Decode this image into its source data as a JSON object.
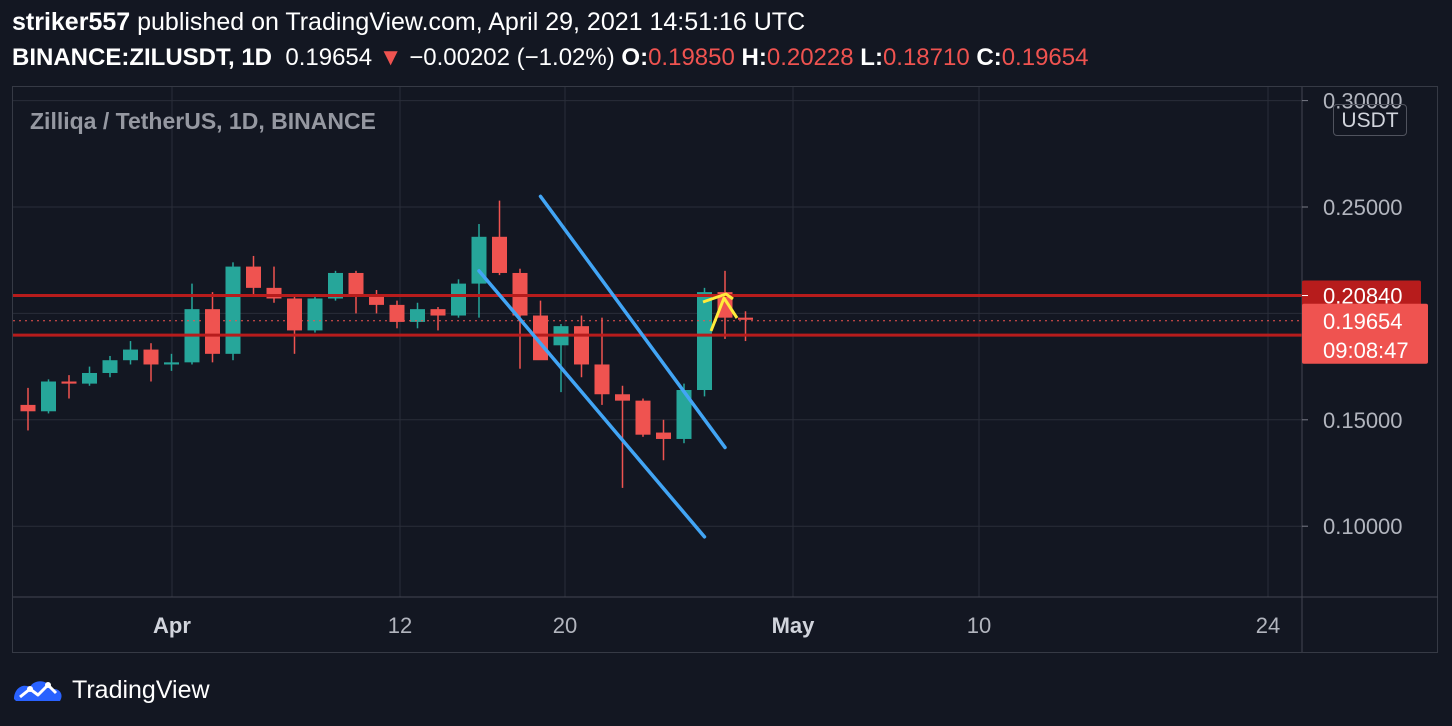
{
  "header": {
    "author": "striker557",
    "published_text": " published on TradingView.com, April 29, 2021 14:51:16 UTC",
    "symbol": "BINANCE:ZILUSDT, 1D",
    "last": "0.19654",
    "change_arrow": "▼",
    "change": "−0.00202 (−1.02%)",
    "o_label": "O:",
    "o_value": "0.19850",
    "h_label": "H:",
    "h_value": "0.20228",
    "l_label": "L:",
    "l_value": "0.18710",
    "c_label": "C:",
    "c_value": "0.19654"
  },
  "legend": "Zilliqa / TetherUS, 1D, BINANCE",
  "currency_button": "USDT",
  "footer": {
    "brand": "TradingView"
  },
  "colors": {
    "up": "#26a69a",
    "down": "#ef5350",
    "line_red": "#b71c1c",
    "channel": "#42a5f5",
    "arrow": "#ffeb3b",
    "bg": "#131722",
    "grid": "#2a2e39"
  },
  "chart_data": {
    "type": "candlestick",
    "title": "Zilliqa / TetherUS, 1D, BINANCE",
    "y_axis": {
      "min": 0.07,
      "max": 0.3,
      "ticks": [
        "0.30000",
        "0.25000",
        "0.15000",
        "0.10000"
      ]
    },
    "x_axis": {
      "labels": [
        "Apr",
        "12",
        "20",
        "May",
        "10",
        "24"
      ]
    },
    "candles": [
      {
        "o": 0.157,
        "h": 0.165,
        "l": 0.145,
        "c": 0.154
      },
      {
        "o": 0.154,
        "h": 0.169,
        "l": 0.153,
        "c": 0.168
      },
      {
        "o": 0.168,
        "h": 0.171,
        "l": 0.16,
        "c": 0.167
      },
      {
        "o": 0.167,
        "h": 0.175,
        "l": 0.166,
        "c": 0.172
      },
      {
        "o": 0.172,
        "h": 0.18,
        "l": 0.17,
        "c": 0.178
      },
      {
        "o": 0.178,
        "h": 0.187,
        "l": 0.176,
        "c": 0.183
      },
      {
        "o": 0.183,
        "h": 0.186,
        "l": 0.168,
        "c": 0.176
      },
      {
        "o": 0.176,
        "h": 0.181,
        "l": 0.173,
        "c": 0.177
      },
      {
        "o": 0.177,
        "h": 0.214,
        "l": 0.176,
        "c": 0.202
      },
      {
        "o": 0.202,
        "h": 0.21,
        "l": 0.177,
        "c": 0.181
      },
      {
        "o": 0.181,
        "h": 0.224,
        "l": 0.178,
        "c": 0.222
      },
      {
        "o": 0.222,
        "h": 0.227,
        "l": 0.209,
        "c": 0.212
      },
      {
        "o": 0.212,
        "h": 0.222,
        "l": 0.205,
        "c": 0.207
      },
      {
        "o": 0.207,
        "h": 0.208,
        "l": 0.181,
        "c": 0.192
      },
      {
        "o": 0.192,
        "h": 0.208,
        "l": 0.191,
        "c": 0.207
      },
      {
        "o": 0.207,
        "h": 0.22,
        "l": 0.206,
        "c": 0.219
      },
      {
        "o": 0.219,
        "h": 0.22,
        "l": 0.2,
        "c": 0.209
      },
      {
        "o": 0.209,
        "h": 0.211,
        "l": 0.2,
        "c": 0.204
      },
      {
        "o": 0.204,
        "h": 0.206,
        "l": 0.193,
        "c": 0.196
      },
      {
        "o": 0.196,
        "h": 0.205,
        "l": 0.193,
        "c": 0.202
      },
      {
        "o": 0.202,
        "h": 0.203,
        "l": 0.192,
        "c": 0.199
      },
      {
        "o": 0.199,
        "h": 0.216,
        "l": 0.198,
        "c": 0.214
      },
      {
        "o": 0.214,
        "h": 0.242,
        "l": 0.198,
        "c": 0.236
      },
      {
        "o": 0.236,
        "h": 0.253,
        "l": 0.218,
        "c": 0.219
      },
      {
        "o": 0.219,
        "h": 0.221,
        "l": 0.174,
        "c": 0.199
      },
      {
        "o": 0.199,
        "h": 0.206,
        "l": 0.179,
        "c": 0.178
      },
      {
        "o": 0.185,
        "h": 0.195,
        "l": 0.163,
        "c": 0.194
      },
      {
        "o": 0.194,
        "h": 0.199,
        "l": 0.17,
        "c": 0.176
      },
      {
        "o": 0.176,
        "h": 0.198,
        "l": 0.157,
        "c": 0.162
      },
      {
        "o": 0.162,
        "h": 0.166,
        "l": 0.118,
        "c": 0.159
      },
      {
        "o": 0.159,
        "h": 0.16,
        "l": 0.142,
        "c": 0.143
      },
      {
        "o": 0.144,
        "h": 0.15,
        "l": 0.131,
        "c": 0.141
      },
      {
        "o": 0.141,
        "h": 0.167,
        "l": 0.139,
        "c": 0.164
      },
      {
        "o": 0.164,
        "h": 0.212,
        "l": 0.161,
        "c": 0.21
      },
      {
        "o": 0.21,
        "h": 0.22,
        "l": 0.188,
        "c": 0.198
      },
      {
        "o": 0.198,
        "h": 0.201,
        "l": 0.187,
        "c": 0.197
      }
    ],
    "horizontal_lines": [
      {
        "price": 0.2084,
        "label": "0.20840"
      },
      {
        "price": 0.1898,
        "label": "0.18980"
      }
    ],
    "last_price": {
      "price": 0.19654,
      "label": "0.19654",
      "countdown": "09:08:47"
    },
    "channel": {
      "upper": [
        {
          "date": "2021-04-17",
          "price": 0.255
        },
        {
          "date": "2021-04-26",
          "price": 0.137
        }
      ],
      "lower": [
        {
          "date": "2021-04-14",
          "price": 0.22
        },
        {
          "date": "2021-04-25",
          "price": 0.095
        }
      ]
    },
    "grid": true
  }
}
